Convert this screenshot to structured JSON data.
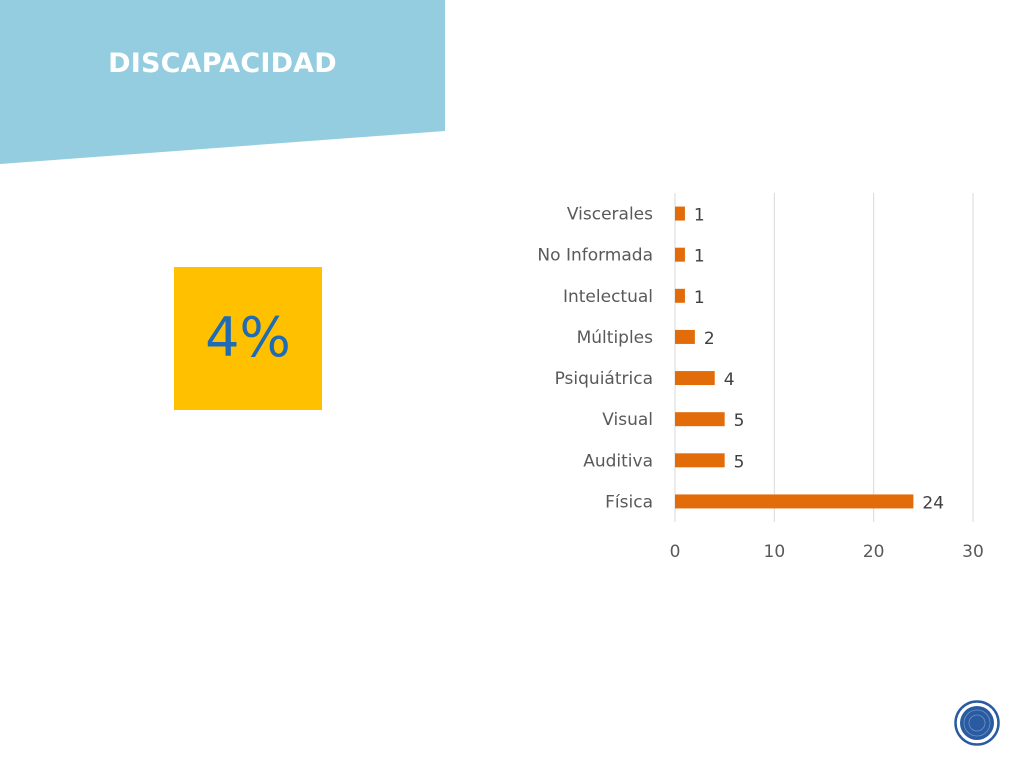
{
  "slide": {
    "title": "DISCAPACIDAD",
    "percent": "4%"
  },
  "colors": {
    "banner": "#94CDDF",
    "percent_box": "#FFC000",
    "percent_text": "#1F6BB5",
    "bar": "#E36C0A",
    "logo": "#2A5BA0"
  },
  "logo": {
    "icon": "seal-icon"
  },
  "chart_data": {
    "type": "bar",
    "orientation": "horizontal",
    "categories": [
      "Física",
      "Auditiva",
      "Visual",
      "Psiquiátrica",
      "Múltiples",
      "Intelectual",
      "No Informada",
      "Viscerales"
    ],
    "values": [
      24,
      5,
      5,
      4,
      2,
      1,
      1,
      1
    ],
    "data_labels": [
      "24",
      "5",
      "5",
      "4",
      "2",
      "1",
      "1",
      "1"
    ],
    "x_ticks": [
      "0",
      "10",
      "20",
      "30"
    ],
    "xlim": [
      0,
      30
    ],
    "grid": true,
    "legend": "none"
  }
}
